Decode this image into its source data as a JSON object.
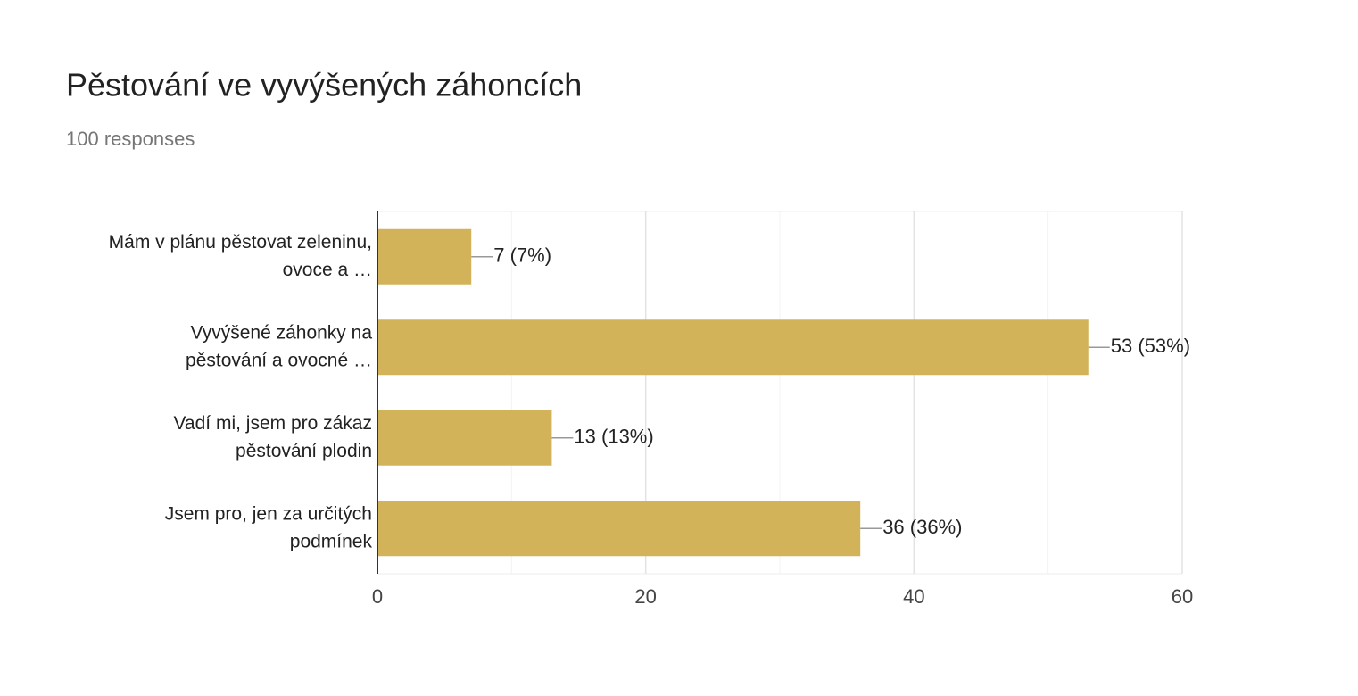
{
  "chart_data": {
    "type": "bar",
    "orientation": "horizontal",
    "title": "Pěstování ve vyvýšených záhoncích",
    "subtitle": "100 responses",
    "categories": [
      [
        "Mám v plánu pěstovat zeleninu,",
        "ovoce a …"
      ],
      [
        "Vyvýšené záhonky na",
        "pěstování a ovocné …"
      ],
      [
        "Vadí mi, jsem pro zákaz",
        "pěstování plodin"
      ],
      [
        "Jsem pro, jen za určitých",
        "podmínek"
      ]
    ],
    "values": [
      7,
      53,
      13,
      36
    ],
    "value_labels": [
      "7 (7%)",
      "53 (53%)",
      "13 (13%)",
      "36 (36%)"
    ],
    "color": "#d3b35a",
    "xlim": [
      0,
      60
    ],
    "xticks": [
      0,
      20,
      40,
      60
    ],
    "minor_gridlines": [
      10,
      30,
      50
    ],
    "grid": true
  }
}
